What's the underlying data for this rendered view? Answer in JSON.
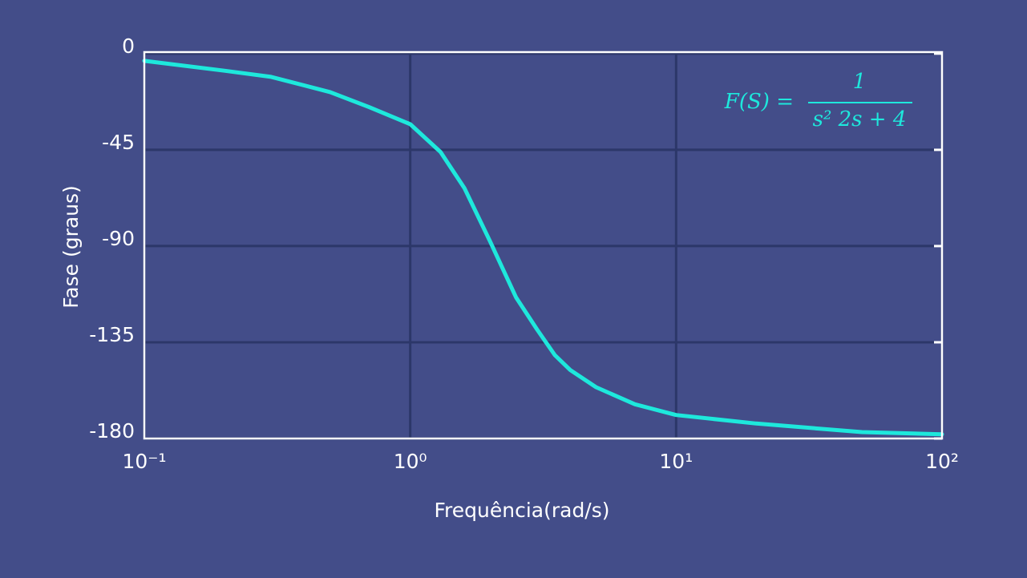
{
  "chart_data": {
    "type": "line",
    "xlabel": "Frequência(rad/s)",
    "ylabel": "Fase (graus)",
    "annotation": {
      "lhs": "F(S) =",
      "numerator": "1",
      "denominator": "s² 2s + 4"
    },
    "x": [
      0.1,
      0.2,
      0.3,
      0.5,
      0.7,
      1,
      1.3,
      1.6,
      2,
      2.5,
      3,
      3.5,
      4,
      5,
      7,
      10,
      20,
      50,
      100
    ],
    "values": [
      -3.4,
      -8,
      -10.9,
      -18,
      -25,
      -33,
      -46,
      -63,
      -88,
      -114,
      -129,
      -141,
      -148,
      -156,
      -164,
      -169,
      -173,
      -177,
      -178
    ],
    "color": "#1ee8dc",
    "xscale": "log",
    "xlim": [
      0.1,
      100
    ],
    "xticks": [
      {
        "value": 0.1,
        "label": "10⁻¹"
      },
      {
        "value": 1,
        "label": "10⁰"
      },
      {
        "value": 10,
        "label": "10¹"
      },
      {
        "value": 100,
        "label": "10²"
      }
    ],
    "ylim": [
      -180,
      0.7
    ],
    "yticks": [
      0,
      -45,
      -90,
      -135,
      -180
    ],
    "grid": true
  }
}
